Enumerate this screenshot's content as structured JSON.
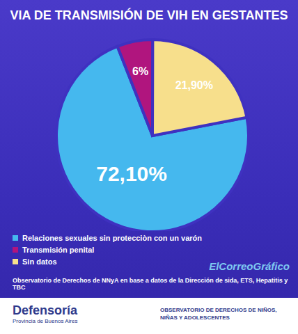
{
  "chart_data": {
    "type": "pie",
    "title": "VIA DE TRANSMISIÓN DE VIH EN GESTANTES",
    "categories": [
      "Relaciones sexuales sin protecciòn con un varón",
      "Transmisión penital",
      "Sin datos"
    ],
    "values": [
      72.1,
      6,
      21.9
    ],
    "value_labels": [
      "72,10%",
      "6%",
      "21,90%"
    ],
    "colors": [
      "#45b8ee",
      "#b0157e",
      "#f7df8c"
    ],
    "data_labels": true,
    "legend": "bottom-left",
    "annotations": [
      "Observatorio de Derechos de NNyA en base a datos de la Dirección de sida, ETS, Hepatitis y TBC",
      "ElCorreoGráfico",
      "Defensoría",
      "Provincia de Buenos Aires",
      "OBSERVATORIO DE DERECHOS DE NIÑOS, NIÑAS Y ADOLESCENTES"
    ]
  }
}
